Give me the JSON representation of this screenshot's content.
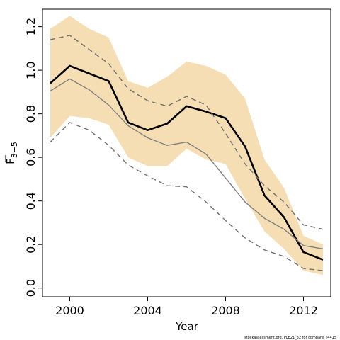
{
  "chart_data": {
    "type": "line",
    "xlabel": "Year",
    "ylabel": {
      "base": "F",
      "subscript": "3−5",
      "overline": true
    },
    "xlim": [
      1998.6,
      2013.4
    ],
    "ylim": [
      -0.04,
      1.28
    ],
    "x_ticks": [
      2000,
      2004,
      2008,
      2012
    ],
    "x_tick_labels": [
      "2000",
      "2004",
      "2008",
      "2012"
    ],
    "y_ticks": [
      0.0,
      0.2,
      0.4,
      0.6,
      0.8,
      1.0,
      1.2
    ],
    "y_tick_labels": [
      "0.0",
      "0.2",
      "0.4",
      "0.6",
      "0.8",
      "1.0",
      "1.2"
    ],
    "grid": false,
    "legend": "none",
    "x": [
      1999,
      2000,
      2001,
      2002,
      2003,
      2004,
      2005,
      2006,
      2007,
      2008,
      2009,
      2010,
      2011,
      2012,
      2013
    ],
    "band": {
      "color": "#f5deb3",
      "upper": [
        1.19,
        1.25,
        1.19,
        1.15,
        0.95,
        0.92,
        0.97,
        1.04,
        1.02,
        0.98,
        0.87,
        0.59,
        0.46,
        0.24,
        0.2
      ],
      "lower": [
        0.69,
        0.79,
        0.78,
        0.75,
        0.6,
        0.56,
        0.56,
        0.64,
        0.59,
        0.57,
        0.41,
        0.26,
        0.18,
        0.08,
        0.06
      ]
    },
    "series": [
      {
        "style": "solid-thick",
        "color": "#000000",
        "values": [
          0.94,
          1.02,
          0.985,
          0.95,
          0.76,
          0.725,
          0.755,
          0.835,
          0.81,
          0.78,
          0.65,
          0.425,
          0.325,
          0.165,
          0.13
        ]
      },
      {
        "style": "solid-thin",
        "color": "#808080",
        "values": [
          0.905,
          0.96,
          0.91,
          0.84,
          0.745,
          0.69,
          0.655,
          0.67,
          0.615,
          0.505,
          0.395,
          0.32,
          0.27,
          0.195,
          0.18
        ]
      },
      {
        "style": "dashed-upper",
        "color": "#707070",
        "values": [
          1.14,
          1.16,
          1.095,
          1.03,
          0.915,
          0.86,
          0.835,
          0.88,
          0.84,
          0.71,
          0.57,
          0.47,
          0.395,
          0.29,
          0.27
        ]
      },
      {
        "style": "dashed-lower",
        "color": "#707070",
        "values": [
          0.67,
          0.76,
          0.725,
          0.655,
          0.565,
          0.515,
          0.47,
          0.465,
          0.395,
          0.31,
          0.23,
          0.175,
          0.145,
          0.09,
          0.08
        ]
      }
    ],
    "footer": "stockassessment.org,  PLE21_32  for  compare,  r4415"
  }
}
